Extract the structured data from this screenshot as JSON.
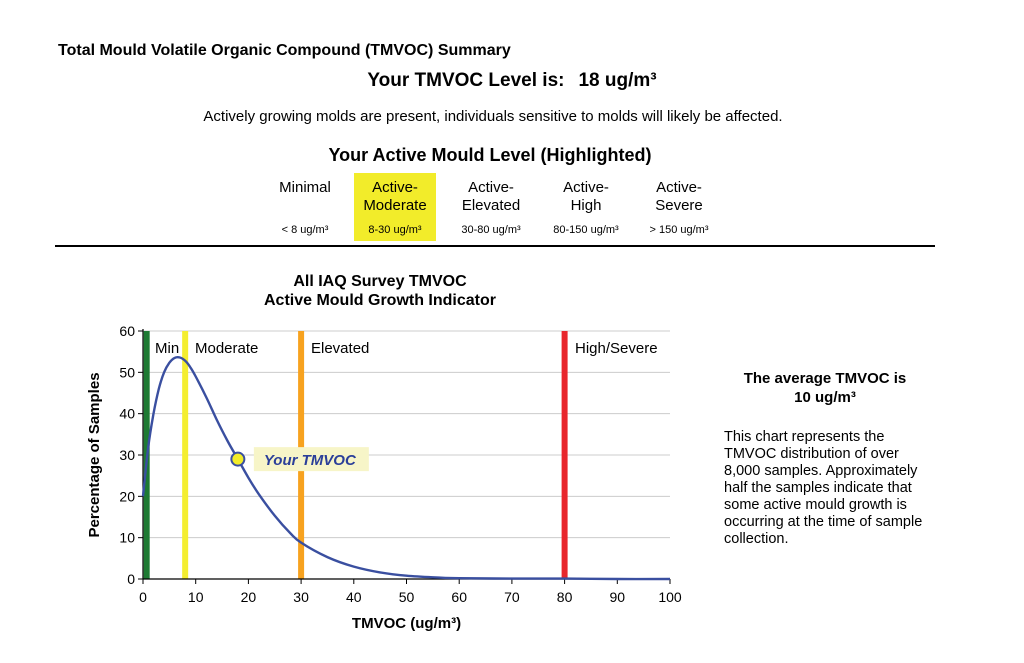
{
  "report": {
    "title": "Total Mould Volatile Organic Compound (TMVOC) Summary",
    "level_label": "Your TMVOC Level is:",
    "level_value": "18  ug/m³",
    "description": "Actively growing molds are present, individuals sensitive to molds will likely be affected.",
    "section_heading": "Your Active Mould Level (Highlighted)"
  },
  "levels": [
    {
      "name": "Minimal",
      "range": "< 8 ug/m³",
      "active": false
    },
    {
      "name": "Active-\nModerate",
      "range": "8-30 ug/m³",
      "active": true
    },
    {
      "name": "Active-\nElevated",
      "range": "30-80 ug/m³",
      "active": false
    },
    {
      "name": "Active-\nHigh",
      "range": "80-150 ug/m³",
      "active": false
    },
    {
      "name": "Active-\nSevere",
      "range": "> 150 ug/m³",
      "active": false
    }
  ],
  "colors": {
    "highlight": "#f2ec2a",
    "curve": "#3a4fa0",
    "marker_fill": "#f2ec2a",
    "marker_label": "#2b3f99",
    "line_min": "#1e7a33",
    "line_moderate": "#f4ee30",
    "line_elevated": "#f7a21f",
    "line_high": "#e8262c"
  },
  "chart_data": {
    "type": "line",
    "title": "All IAQ Survey TMVOC",
    "subtitle": "Active Mould Growth Indicator",
    "xlabel": "TMVOC (ug/m³)",
    "ylabel": "Percentage of Samples",
    "xlim": [
      0,
      100
    ],
    "ylim": [
      0,
      60
    ],
    "xticks": [
      0,
      10,
      20,
      30,
      40,
      50,
      60,
      70,
      80,
      90,
      100
    ],
    "yticks": [
      0,
      10,
      20,
      30,
      40,
      50,
      60
    ],
    "grid": true,
    "series": [
      {
        "x": [
          0,
          1,
          2,
          3,
          4,
          5,
          6,
          7,
          8,
          9,
          10,
          12,
          14,
          16,
          18,
          20,
          22,
          25,
          28,
          30,
          35,
          40,
          45,
          50,
          55,
          60,
          70,
          80,
          90,
          100
        ],
        "y": [
          20,
          32,
          40,
          46,
          50,
          52.3,
          53.5,
          53.6,
          52.8,
          51.2,
          49,
          44,
          38.5,
          33.5,
          29,
          24.5,
          20.5,
          15.3,
          11,
          8.8,
          5.3,
          3,
          1.6,
          0.8,
          0.4,
          0.2,
          0.1,
          0.1,
          0,
          0
        ]
      }
    ],
    "threshold_lines": [
      {
        "x": 0.7,
        "label": "Min",
        "color": "#1e7a33"
      },
      {
        "x": 8,
        "label": "Moderate",
        "color": "#f4ee30"
      },
      {
        "x": 30,
        "label": "Elevated",
        "color": "#f7a21f"
      },
      {
        "x": 80,
        "label": "High/Severe",
        "color": "#e8262c"
      }
    ],
    "marker": {
      "x": 18,
      "y": 29,
      "label": "Your TMVOC"
    }
  },
  "summary": {
    "average_label": "The average TMVOC is",
    "average_value": "10 ug/m³",
    "note": "This chart represents the TMVOC distribution of over 8,000 samples. Approximately half the samples indicate that some active mould growth is occurring at the time of sample collection."
  }
}
